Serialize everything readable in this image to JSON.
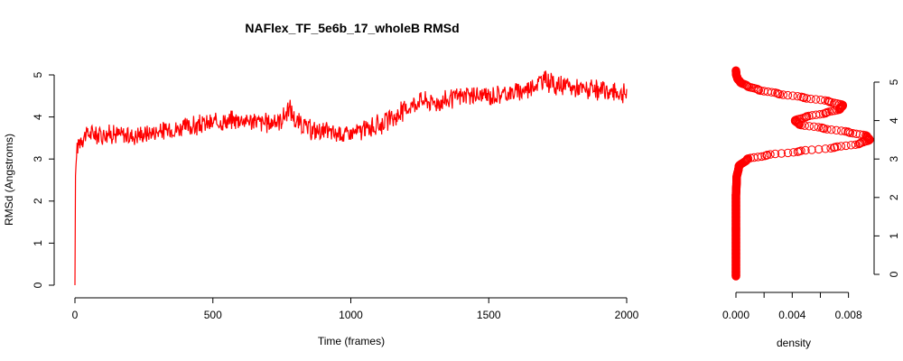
{
  "chart_data": [
    {
      "type": "line",
      "title": "NAFlex_TF_5e6b_17_wholeB RMSd",
      "xlabel": "Time (frames)",
      "ylabel": "RMSd (Angstroms)",
      "xlim": [
        0,
        2000
      ],
      "ylim": [
        0,
        5
      ],
      "x_ticks": [
        "0",
        "500",
        "1000",
        "1500",
        "2000"
      ],
      "y_ticks": [
        "0",
        "1",
        "2",
        "3",
        "4",
        "5"
      ],
      "series": [
        {
          "color": "#ff0000",
          "x": [
            0,
            2,
            5,
            10,
            20,
            50,
            100,
            150,
            200,
            250,
            300,
            350,
            400,
            450,
            500,
            550,
            600,
            650,
            700,
            750,
            780,
            800,
            850,
            900,
            950,
            1000,
            1050,
            1100,
            1150,
            1200,
            1250,
            1300,
            1350,
            1400,
            1450,
            1500,
            1550,
            1600,
            1650,
            1700,
            1750,
            1800,
            1850,
            1900,
            1950,
            2000
          ],
          "values": [
            0.0,
            2.6,
            3.0,
            3.3,
            3.5,
            3.6,
            3.6,
            3.6,
            3.55,
            3.6,
            3.65,
            3.7,
            3.75,
            3.8,
            3.85,
            3.9,
            3.95,
            3.9,
            3.85,
            3.95,
            4.2,
            3.9,
            3.7,
            3.65,
            3.6,
            3.6,
            3.7,
            3.8,
            3.95,
            4.2,
            4.4,
            4.35,
            4.4,
            4.5,
            4.5,
            4.5,
            4.55,
            4.6,
            4.7,
            4.9,
            4.75,
            4.7,
            4.65,
            4.6,
            4.6,
            4.55
          ],
          "noise": 0.28
        }
      ]
    },
    {
      "type": "scatter",
      "xlabel": "density",
      "ylabel": "",
      "xlim": [
        0,
        0.0095
      ],
      "ylim": [
        0,
        5
      ],
      "x_ticks": [
        "0.000",
        "0.004",
        "0.008"
      ],
      "y_ticks": [
        "0",
        "1",
        "2",
        "3",
        "4",
        "5"
      ],
      "series": [
        {
          "color": "#ff0000",
          "marker": "open-circle",
          "y": [
            -0.05,
            0.5,
            1.0,
            1.5,
            2.0,
            2.5,
            2.8,
            3.0,
            3.1,
            3.2,
            3.3,
            3.4,
            3.5,
            3.6,
            3.7,
            3.8,
            3.9,
            4.0,
            4.1,
            4.2,
            4.3,
            4.4,
            4.5,
            4.6,
            4.7,
            4.8,
            4.9,
            5.0,
            5.1,
            5.2,
            5.3
          ],
          "values": [
            0.0,
            0.0,
            0.0,
            0.0,
            0.0,
            5e-05,
            0.0002,
            0.0008,
            0.0022,
            0.0045,
            0.007,
            0.0088,
            0.0095,
            0.0093,
            0.008,
            0.0062,
            0.0045,
            0.0042,
            0.005,
            0.0064,
            0.0074,
            0.0076,
            0.0066,
            0.0048,
            0.003,
            0.0016,
            0.0008,
            0.0003,
            0.0001,
            2e-05,
            0.0
          ]
        }
      ]
    }
  ]
}
